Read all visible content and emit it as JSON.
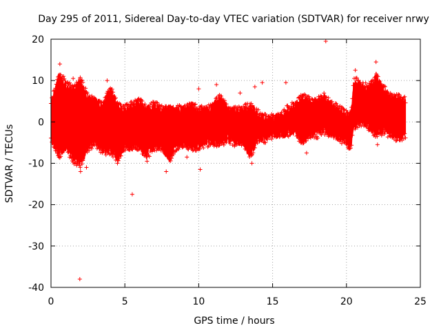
{
  "chart_data": {
    "type": "scatter",
    "title": "Day 295 of 2011, Sidereal Day-to-day VTEC variation (SDTVAR) for receiver nrwy",
    "xlabel": "GPS time / hours",
    "ylabel": "SDTVAR / TECUs",
    "xlim": [
      0,
      25
    ],
    "ylim": [
      -40,
      20
    ],
    "xticks": [
      0,
      5,
      10,
      15,
      20,
      25
    ],
    "yticks": [
      -40,
      -30,
      -20,
      -10,
      0,
      10,
      20
    ],
    "grid": true,
    "marker": "plus",
    "series": [
      {
        "name": "SDTVAR",
        "color": "#ff0000",
        "band_min": [
          [
            0.0,
            -4
          ],
          [
            0.5,
            -8
          ],
          [
            1.0,
            -6
          ],
          [
            1.5,
            -9
          ],
          [
            2.0,
            -10
          ],
          [
            2.5,
            -6
          ],
          [
            3.0,
            -5
          ],
          [
            3.5,
            -7
          ],
          [
            4.0,
            -7
          ],
          [
            4.5,
            -9
          ],
          [
            5.0,
            -6
          ],
          [
            5.5,
            -6
          ],
          [
            6.0,
            -6
          ],
          [
            6.5,
            -8
          ],
          [
            7.0,
            -6
          ],
          [
            7.5,
            -6
          ],
          [
            8.0,
            -9
          ],
          [
            8.5,
            -6
          ],
          [
            9.0,
            -5
          ],
          [
            9.5,
            -6
          ],
          [
            10.0,
            -6
          ],
          [
            10.5,
            -5
          ],
          [
            11.0,
            -5
          ],
          [
            11.5,
            -5
          ],
          [
            12.0,
            -4
          ],
          [
            12.5,
            -5
          ],
          [
            13.0,
            -5
          ],
          [
            13.5,
            -8
          ],
          [
            14.0,
            -4
          ],
          [
            14.5,
            -4
          ],
          [
            15.0,
            -3
          ],
          [
            15.5,
            -3
          ],
          [
            16.0,
            -3
          ],
          [
            16.5,
            -2
          ],
          [
            17.0,
            -5
          ],
          [
            17.5,
            -3
          ],
          [
            18.0,
            -3
          ],
          [
            18.5,
            -2
          ],
          [
            19.0,
            -3
          ],
          [
            19.5,
            -4
          ],
          [
            20.0,
            -5
          ],
          [
            20.3,
            -6
          ],
          [
            20.5,
            -1
          ],
          [
            21.0,
            0
          ],
          [
            21.5,
            -1
          ],
          [
            22.0,
            -3
          ],
          [
            22.5,
            -2
          ],
          [
            23.0,
            -3
          ],
          [
            23.5,
            -4
          ],
          [
            24.0,
            -3
          ]
        ],
        "band_max": [
          [
            0.0,
            4
          ],
          [
            0.5,
            11
          ],
          [
            1.0,
            9
          ],
          [
            1.5,
            8
          ],
          [
            2.0,
            10
          ],
          [
            2.5,
            6
          ],
          [
            3.0,
            5
          ],
          [
            3.5,
            4
          ],
          [
            4.0,
            8
          ],
          [
            4.5,
            4
          ],
          [
            5.0,
            3
          ],
          [
            5.5,
            4
          ],
          [
            6.0,
            5
          ],
          [
            6.5,
            3
          ],
          [
            7.0,
            4
          ],
          [
            7.5,
            3
          ],
          [
            8.0,
            3
          ],
          [
            8.5,
            3
          ],
          [
            9.0,
            3
          ],
          [
            9.5,
            4
          ],
          [
            10.0,
            3
          ],
          [
            10.5,
            3
          ],
          [
            11.0,
            4
          ],
          [
            11.5,
            6
          ],
          [
            12.0,
            3
          ],
          [
            12.5,
            3
          ],
          [
            13.0,
            3
          ],
          [
            13.5,
            4
          ],
          [
            14.0,
            2
          ],
          [
            14.5,
            1
          ],
          [
            15.0,
            1
          ],
          [
            15.5,
            1
          ],
          [
            16.0,
            3
          ],
          [
            16.5,
            4
          ],
          [
            17.0,
            6
          ],
          [
            17.5,
            5
          ],
          [
            18.0,
            5
          ],
          [
            18.5,
            6
          ],
          [
            19.0,
            4
          ],
          [
            19.5,
            3
          ],
          [
            20.0,
            2
          ],
          [
            20.3,
            2
          ],
          [
            20.5,
            10
          ],
          [
            21.0,
            9
          ],
          [
            21.5,
            8
          ],
          [
            22.0,
            11
          ],
          [
            22.5,
            8
          ],
          [
            23.0,
            6
          ],
          [
            23.5,
            6
          ],
          [
            24.0,
            5
          ]
        ],
        "outliers": [
          [
            0.6,
            14
          ],
          [
            0.85,
            11
          ],
          [
            1.5,
            10.5
          ],
          [
            2.0,
            -12
          ],
          [
            2.4,
            -11
          ],
          [
            3.8,
            10
          ],
          [
            4.5,
            -10
          ],
          [
            5.5,
            -17.5
          ],
          [
            1.95,
            -38
          ],
          [
            6.5,
            -9.5
          ],
          [
            7.8,
            -12
          ],
          [
            9.2,
            -8.5
          ],
          [
            10.0,
            8
          ],
          [
            10.1,
            -11.5
          ],
          [
            11.2,
            9
          ],
          [
            12.8,
            7
          ],
          [
            13.6,
            -10
          ],
          [
            13.8,
            8.5
          ],
          [
            14.3,
            9.5
          ],
          [
            15.9,
            9.5
          ],
          [
            17.3,
            -7.5
          ],
          [
            18.0,
            -3.5
          ],
          [
            18.6,
            19.5
          ],
          [
            20.6,
            12.5
          ],
          [
            21.5,
            -2
          ],
          [
            22.0,
            14.5
          ],
          [
            22.1,
            -5.5
          ],
          [
            23.4,
            -4.5
          ]
        ]
      }
    ]
  }
}
